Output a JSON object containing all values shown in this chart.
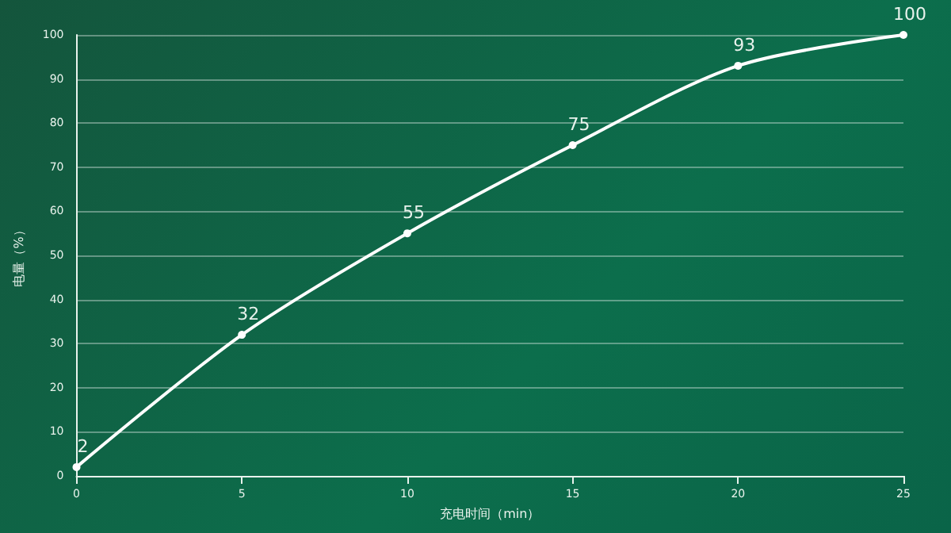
{
  "chart_data": {
    "type": "line",
    "xlabel": "充电时间（min）",
    "ylabel": "电量（%）",
    "x": [
      0,
      5,
      10,
      15,
      20,
      25
    ],
    "series": [
      {
        "color": "#ffffff",
        "values": [
          2,
          32,
          55,
          75,
          93,
          100
        ]
      }
    ],
    "xlim": [
      0,
      25
    ],
    "xticks": [
      0,
      5,
      10,
      15,
      20,
      25
    ],
    "ylim": [
      0,
      100
    ],
    "yticks": [
      0,
      10,
      20,
      30,
      40,
      50,
      60,
      70,
      80,
      90,
      100
    ],
    "grid": "y",
    "data_labels": true,
    "marker": "circle",
    "line_style": "solid"
  }
}
